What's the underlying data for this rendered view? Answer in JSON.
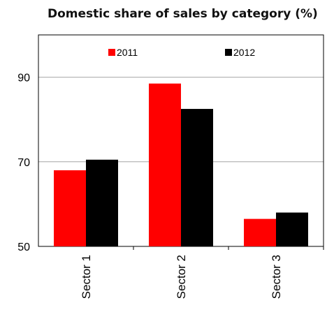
{
  "chart_data": {
    "type": "bar",
    "title": "Domestic share of sales by category (%)",
    "xlabel": "",
    "ylabel": "",
    "categories": [
      "Sector 1",
      "Sector 2",
      "Sector 3"
    ],
    "series": [
      {
        "name": "2011",
        "color": "#ff0000",
        "values": [
          68,
          88.5,
          56.5
        ]
      },
      {
        "name": "2012",
        "color": "#000000",
        "values": [
          70.5,
          82.5,
          58
        ]
      }
    ],
    "ylim": [
      50,
      100
    ],
    "yticks": [
      50,
      70,
      90
    ],
    "grid": true,
    "legend": "top"
  }
}
